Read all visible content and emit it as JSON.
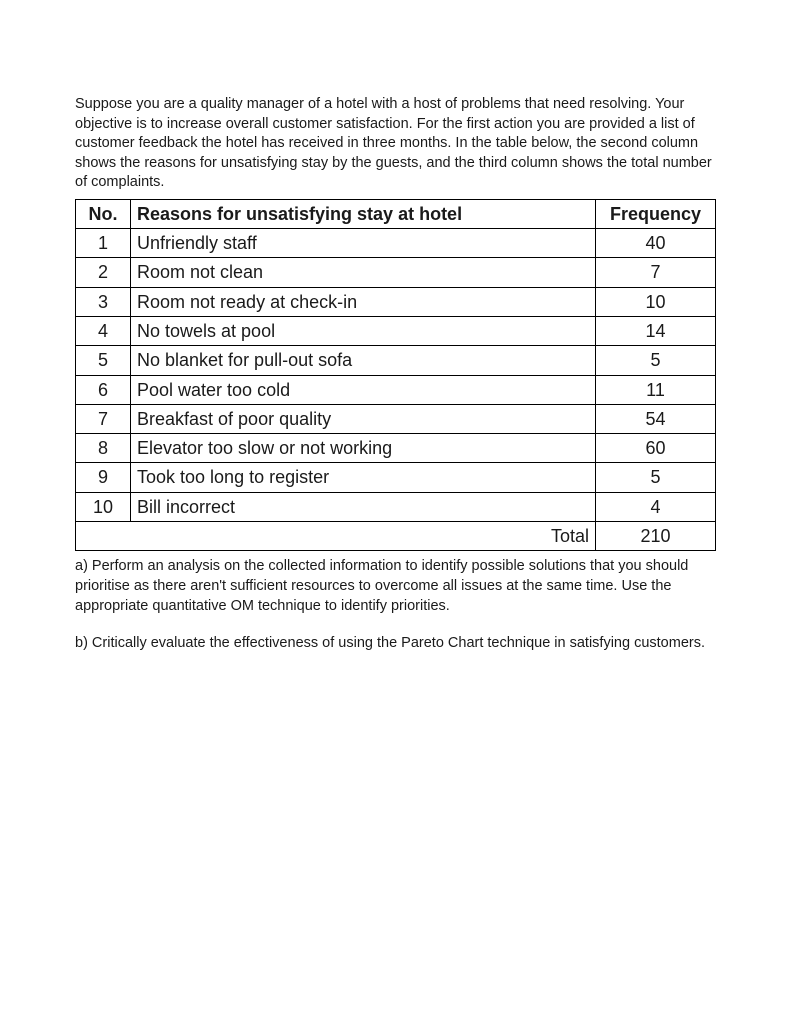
{
  "intro": "Suppose you are a quality manager of a hotel with a host of problems that need resolving. Your objective is to increase overall customer satisfaction. For the first action you are provided a list of customer feedback the hotel has received in three months. In the table below, the second column shows the reasons for unsatisfying stay by the guests, and the third column shows the total number of complaints.",
  "table": {
    "headers": {
      "no": "No.",
      "reason": "Reasons for unsatisfying stay at hotel",
      "freq": "Frequency"
    },
    "rows": [
      {
        "no": "1",
        "reason": "Unfriendly staff",
        "freq": "40"
      },
      {
        "no": "2",
        "reason": "Room not clean",
        "freq": "7"
      },
      {
        "no": "3",
        "reason": "Room not ready at check-in",
        "freq": "10"
      },
      {
        "no": "4",
        "reason": "No towels at pool",
        "freq": "14"
      },
      {
        "no": "5",
        "reason": "No blanket for pull-out sofa",
        "freq": "5"
      },
      {
        "no": "6",
        "reason": "Pool water too cold",
        "freq": "11"
      },
      {
        "no": "7",
        "reason": "Breakfast of poor quality",
        "freq": "54"
      },
      {
        "no": "8",
        "reason": "Elevator too slow or not working",
        "freq": "60"
      },
      {
        "no": "9",
        "reason": "Took too long to register",
        "freq": "5"
      },
      {
        "no": "10",
        "reason": "Bill incorrect",
        "freq": "4"
      }
    ],
    "total_label": "Total",
    "total_value": "210"
  },
  "questions": {
    "a": "a) Perform an analysis on the collected information to identify possible solutions that you should prioritise as there aren't sufficient resources to overcome all issues at the same time. Use the appropriate quantitative OM technique to identify priorities.",
    "b": "b) Critically evaluate the effectiveness of using the Pareto Chart technique in satisfying customers."
  }
}
